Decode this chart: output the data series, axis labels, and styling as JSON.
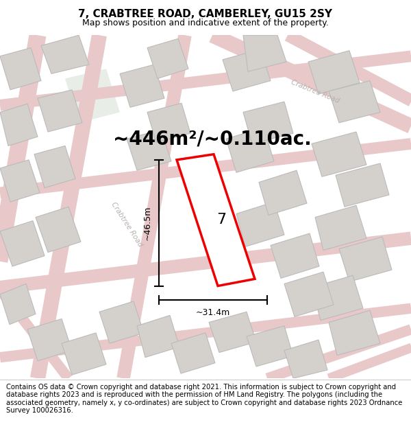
{
  "title": "7, CRABTREE ROAD, CAMBERLEY, GU15 2SY",
  "subtitle": "Map shows position and indicative extent of the property.",
  "footer": "Contains OS data © Crown copyright and database right 2021. This information is subject to Crown copyright and database rights 2023 and is reproduced with the permission of HM Land Registry. The polygons (including the associated geometry, namely x, y co-ordinates) are subject to Crown copyright and database rights 2023 Ordnance Survey 100026316.",
  "area_text": "~446m²/~0.110ac.",
  "map_bg": "#f0eeea",
  "road_color": "#e8c8c8",
  "road_fill": "#f5e8e8",
  "building_color": "#d4d0cc",
  "building_edge": "#bbbbbb",
  "highlight_color": "#ee0000",
  "highlight_bg": "#ffffff",
  "dim_color": "#000000",
  "road_text_color": "#b8b0b0",
  "green_patch_color": "#e8ede8",
  "plot_label": "7",
  "dim_width": "~31.4m",
  "dim_height": "~46.5m",
  "title_fontsize": 11,
  "subtitle_fontsize": 9,
  "area_fontsize": 20,
  "footer_fontsize": 7.2,
  "crabtree_road_label1": "Crabtree Road",
  "crabtree_road_label2": "Crabtree Road"
}
